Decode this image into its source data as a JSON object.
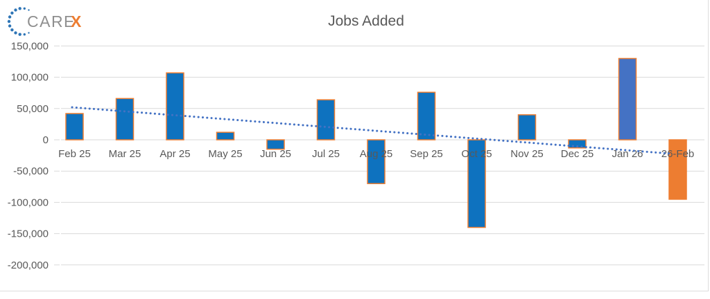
{
  "logo": {
    "text_gray": "CARE",
    "text_accent": "X",
    "dot_color": "#2e75b6",
    "gray_color": "#8f8f8f",
    "accent_color": "#ed7d31"
  },
  "chart_data": {
    "type": "bar",
    "title": "Jobs Added",
    "categories": [
      "Feb 25",
      "Mar 25",
      "Apr 25",
      "May 25",
      "Jun 25",
      "Jul 25",
      "Aug 25",
      "Sep 25",
      "Oct 25",
      "Nov 25",
      "Dec 25",
      "Jan 26",
      "26-Feb"
    ],
    "values": [
      42000,
      66000,
      107000,
      12000,
      -15000,
      64000,
      -70000,
      76000,
      -140000,
      40000,
      -13000,
      130000,
      -95000
    ],
    "xlabel": "",
    "ylabel": "",
    "ylim": [
      -200000,
      150000
    ],
    "y_ticks": [
      150000,
      100000,
      50000,
      0,
      -50000,
      -100000,
      -150000,
      -200000
    ],
    "y_tick_labels": [
      "150,000",
      "100,000",
      "50,000",
      "0",
      "-50,000",
      "-100,000",
      "-150,000",
      "-200,000"
    ],
    "grid": true,
    "legend": "none",
    "bar_fill_default": "#0e72bf",
    "bar_border": "#ed7d31",
    "bar_fill_overrides": {
      "Jan 26": "#4472c4",
      "26-Feb": "#ed7d31"
    },
    "trendline": {
      "style": "dotted",
      "color": "#4472c4",
      "start_value": 52000,
      "end_value": -22000
    },
    "colors": {
      "text": "#595959",
      "gridline": "#d9d9d9"
    }
  }
}
